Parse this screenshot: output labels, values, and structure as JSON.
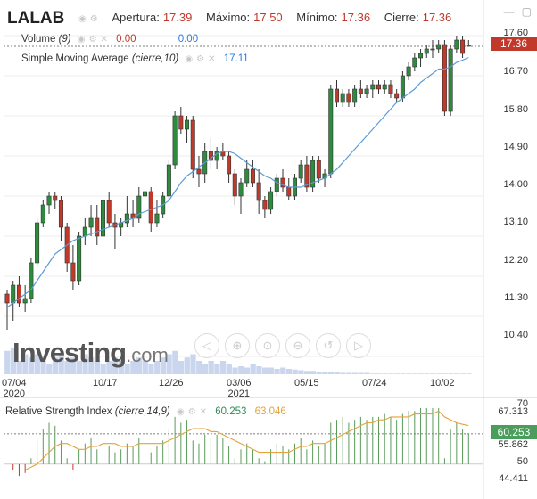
{
  "header": {
    "symbol": "LALAB",
    "open_label": "Apertura:",
    "open_value": "17.39",
    "high_label": "Máximo:",
    "high_value": "17.50",
    "low_label": "Mínimo:",
    "low_value": "17.36",
    "close_label": "Cierre:",
    "close_value": "17.36"
  },
  "volume_indicator": {
    "label": "Volume",
    "param": "(9)",
    "value_red": "0.00",
    "value_blue": "0.00"
  },
  "sma_indicator": {
    "label": "Simple Moving Average",
    "param": "(cierre,10)",
    "value": "17.11"
  },
  "rsi_indicator": {
    "label": "Relative Strength Index",
    "param": "(cierre,14,9)",
    "value_green": "60.253",
    "value_orange": "63.046"
  },
  "last_price_tag": "17.36",
  "rsi_tag": "60.253",
  "logo": {
    "main": "Investing",
    "suffix": ".com"
  },
  "price_axis": [
    "17.60",
    "16.70",
    "15.80",
    "14.90",
    "14.00",
    "13.10",
    "12.20",
    "11.30",
    "10.40"
  ],
  "rsi_axis": [
    "70",
    "67.313",
    "55.862",
    "50",
    "44.411"
  ],
  "date_axis": [
    {
      "top": "07/04",
      "bottom": "2020"
    },
    {
      "top": "10/17",
      "bottom": ""
    },
    {
      "top": "12/26",
      "bottom": ""
    },
    {
      "top": "03/06",
      "bottom": "2021"
    },
    {
      "top": "05/15",
      "bottom": ""
    },
    {
      "top": "07/24",
      "bottom": ""
    },
    {
      "top": "10/02",
      "bottom": ""
    }
  ],
  "colors": {
    "up": "#2e8b3e",
    "down": "#c0392b",
    "sma": "#5b9bd5",
    "rsi_signal": "#e6a23c",
    "price_tag": "#c0392b",
    "rsi_tag": "#4a9d5b"
  },
  "chart_data": [
    {
      "type": "candlestick",
      "title": "LALAB",
      "ylim": [
        10.0,
        17.8
      ],
      "y_ticks": [
        17.6,
        16.7,
        15.8,
        14.9,
        14.0,
        13.1,
        12.2,
        11.3,
        10.4
      ],
      "x_tick_labels": [
        "07/04 2020",
        "10/17",
        "12/26",
        "03/06 2021",
        "05/15",
        "07/24",
        "10/02"
      ],
      "ohlc": [
        [
          11.8,
          11.9,
          11.0,
          11.6
        ],
        [
          11.6,
          12.1,
          11.2,
          12.0
        ],
        [
          12.0,
          12.2,
          11.5,
          11.6
        ],
        [
          11.6,
          12.0,
          11.4,
          11.7
        ],
        [
          11.7,
          12.6,
          11.6,
          12.5
        ],
        [
          12.5,
          13.5,
          12.4,
          13.4
        ],
        [
          13.4,
          13.9,
          13.3,
          13.8
        ],
        [
          13.8,
          14.1,
          13.6,
          14.0
        ],
        [
          14.0,
          14.1,
          13.7,
          13.9
        ],
        [
          13.9,
          14.0,
          13.0,
          13.3
        ],
        [
          13.3,
          13.4,
          12.3,
          12.5
        ],
        [
          12.5,
          12.9,
          11.9,
          12.1
        ],
        [
          12.1,
          13.2,
          12.0,
          13.1
        ],
        [
          13.1,
          13.5,
          12.9,
          13.3
        ],
        [
          13.3,
          13.8,
          13.1,
          13.5
        ],
        [
          13.5,
          13.8,
          12.9,
          13.1
        ],
        [
          13.1,
          14.0,
          13.0,
          13.9
        ],
        [
          13.9,
          14.1,
          13.3,
          13.4
        ],
        [
          13.4,
          13.6,
          12.8,
          13.3
        ],
        [
          13.3,
          13.5,
          13.1,
          13.4
        ],
        [
          13.4,
          14.0,
          13.3,
          13.6
        ],
        [
          13.6,
          13.9,
          13.3,
          13.5
        ],
        [
          13.5,
          14.2,
          13.4,
          14.0
        ],
        [
          14.0,
          14.2,
          13.8,
          14.1
        ],
        [
          14.1,
          14.2,
          13.2,
          13.4
        ],
        [
          13.4,
          13.9,
          13.3,
          13.6
        ],
        [
          13.6,
          14.1,
          13.5,
          14.0
        ],
        [
          14.0,
          14.8,
          13.9,
          14.7
        ],
        [
          14.7,
          15.9,
          14.6,
          15.8
        ],
        [
          15.8,
          16.0,
          15.4,
          15.5
        ],
        [
          15.5,
          15.8,
          15.2,
          15.7
        ],
        [
          15.7,
          15.8,
          14.4,
          14.6
        ],
        [
          14.6,
          14.9,
          14.2,
          14.5
        ],
        [
          14.5,
          15.2,
          14.3,
          15.0
        ],
        [
          15.0,
          15.3,
          14.6,
          14.8
        ],
        [
          14.8,
          15.1,
          14.6,
          15.0
        ],
        [
          15.0,
          15.2,
          14.8,
          14.9
        ],
        [
          14.9,
          15.0,
          14.3,
          14.5
        ],
        [
          14.5,
          14.6,
          13.8,
          14.0
        ],
        [
          14.0,
          14.4,
          13.6,
          14.3
        ],
        [
          14.3,
          14.8,
          14.2,
          14.6
        ],
        [
          14.6,
          14.8,
          14.2,
          14.3
        ],
        [
          14.3,
          14.6,
          13.6,
          13.9
        ],
        [
          13.9,
          14.0,
          13.5,
          13.7
        ],
        [
          13.7,
          14.2,
          13.6,
          14.1
        ],
        [
          14.1,
          14.5,
          14.0,
          14.4
        ],
        [
          14.4,
          14.6,
          14.1,
          14.2
        ],
        [
          14.2,
          14.4,
          13.9,
          14.0
        ],
        [
          14.0,
          14.5,
          13.9,
          14.4
        ],
        [
          14.4,
          14.8,
          14.3,
          14.7
        ],
        [
          14.7,
          14.9,
          14.1,
          14.2
        ],
        [
          14.2,
          14.9,
          14.1,
          14.8
        ],
        [
          14.8,
          14.9,
          14.3,
          14.4
        ],
        [
          14.4,
          14.6,
          14.2,
          14.5
        ],
        [
          14.5,
          16.5,
          14.4,
          16.4
        ],
        [
          16.4,
          16.6,
          16.0,
          16.1
        ],
        [
          16.1,
          16.4,
          16.0,
          16.3
        ],
        [
          16.3,
          16.4,
          16.0,
          16.1
        ],
        [
          16.1,
          16.5,
          16.0,
          16.4
        ],
        [
          16.4,
          16.6,
          16.2,
          16.3
        ],
        [
          16.3,
          16.5,
          16.2,
          16.4
        ],
        [
          16.4,
          16.6,
          16.2,
          16.5
        ],
        [
          16.5,
          16.6,
          16.3,
          16.4
        ],
        [
          16.4,
          16.6,
          16.3,
          16.5
        ],
        [
          16.5,
          16.6,
          16.2,
          16.3
        ],
        [
          16.3,
          16.4,
          16.1,
          16.2
        ],
        [
          16.2,
          16.8,
          16.1,
          16.7
        ],
        [
          16.7,
          17.0,
          16.6,
          16.9
        ],
        [
          16.9,
          17.2,
          16.8,
          17.1
        ],
        [
          17.1,
          17.3,
          16.9,
          17.2
        ],
        [
          17.2,
          17.4,
          17.1,
          17.3
        ],
        [
          17.3,
          17.5,
          17.1,
          17.3
        ],
        [
          17.3,
          17.5,
          17.2,
          17.4
        ],
        [
          17.4,
          17.5,
          15.8,
          15.9
        ],
        [
          15.9,
          17.4,
          15.8,
          17.3
        ],
        [
          17.3,
          17.6,
          17.2,
          17.5
        ],
        [
          17.5,
          17.6,
          17.1,
          17.2
        ],
        [
          17.39,
          17.5,
          17.36,
          17.36
        ]
      ],
      "sma": [
        11.5,
        11.6,
        11.7,
        11.8,
        11.9,
        12.1,
        12.3,
        12.5,
        12.7,
        12.8,
        12.9,
        13.0,
        13.05,
        13.1,
        13.15,
        13.2,
        13.25,
        13.3,
        13.35,
        13.4,
        13.45,
        13.5,
        13.6,
        13.65,
        13.7,
        13.75,
        13.8,
        13.9,
        14.1,
        14.3,
        14.45,
        14.55,
        14.65,
        14.75,
        14.85,
        14.95,
        15.0,
        15.0,
        14.95,
        14.85,
        14.75,
        14.65,
        14.55,
        14.45,
        14.4,
        14.3,
        14.25,
        14.2,
        14.2,
        14.2,
        14.25,
        14.3,
        14.35,
        14.4,
        14.5,
        14.6,
        14.75,
        14.9,
        15.05,
        15.2,
        15.35,
        15.5,
        15.65,
        15.8,
        15.95,
        16.1,
        16.2,
        16.3,
        16.4,
        16.55,
        16.65,
        16.75,
        16.85,
        16.85,
        16.9,
        17.0,
        17.05,
        17.11
      ],
      "volume": [
        0.35,
        0.4,
        0.2,
        0.3,
        0.25,
        0.3,
        0.2,
        0.15,
        0.25,
        0.3,
        0.2,
        0.25,
        0.2,
        0.3,
        0.25,
        0.2,
        0.15,
        0.2,
        0.25,
        0.2,
        0.15,
        0.2,
        0.25,
        0.2,
        0.15,
        0.2,
        0.25,
        0.3,
        0.35,
        0.2,
        0.25,
        0.3,
        0.2,
        0.15,
        0.2,
        0.15,
        0.2,
        0.15,
        0.1,
        0.12,
        0.1,
        0.15,
        0.12,
        0.1,
        0.1,
        0.08,
        0.1,
        0.08,
        0.07,
        0.06,
        0.05,
        0.05,
        0.04,
        0.04,
        0.03,
        0.03,
        0.02,
        0.02,
        0.02,
        0.02,
        0.02,
        0.01,
        0.01,
        0.01,
        0.01,
        0.01,
        0.01,
        0.01,
        0.01,
        0.01,
        0.01,
        0.01,
        0.01,
        0.01,
        0.01,
        0.01,
        0.01,
        0.01
      ]
    },
    {
      "type": "line",
      "title": "Relative Strength Index",
      "ylim": [
        40,
        72
      ],
      "y_ticks": [
        70,
        67.313,
        55.862,
        50,
        44.411
      ],
      "rsi": [
        50,
        48,
        46,
        47,
        52,
        58,
        62,
        64,
        63,
        58,
        52,
        48,
        55,
        57,
        59,
        55,
        60,
        56,
        54,
        55,
        57,
        56,
        59,
        60,
        54,
        56,
        58,
        62,
        66,
        64,
        65,
        58,
        57,
        60,
        59,
        60,
        59,
        56,
        52,
        55,
        57,
        55,
        52,
        51,
        55,
        57,
        56,
        55,
        57,
        59,
        55,
        58,
        56,
        57,
        64,
        65,
        66,
        64,
        65,
        66,
        65,
        66,
        66,
        67,
        66,
        65,
        67,
        68,
        68,
        69,
        69,
        69,
        69,
        52,
        62,
        64,
        62,
        60.253
      ],
      "signal": [
        48,
        48,
        48,
        48,
        49,
        50,
        52,
        54,
        56,
        57,
        57,
        56,
        55,
        55,
        56,
        56,
        57,
        57,
        57,
        56,
        56,
        56,
        57,
        57,
        57,
        57,
        57,
        58,
        59,
        60,
        61,
        62,
        62,
        62,
        61,
        61,
        60,
        59,
        58,
        57,
        56,
        55,
        54,
        54,
        54,
        54,
        54,
        54,
        55,
        56,
        56,
        57,
        57,
        57,
        58,
        59,
        60,
        61,
        62,
        63,
        64,
        64,
        65,
        65,
        66,
        66,
        66,
        66,
        67,
        67,
        67,
        67,
        68,
        66,
        65,
        64,
        63.5,
        63.046
      ]
    }
  ]
}
